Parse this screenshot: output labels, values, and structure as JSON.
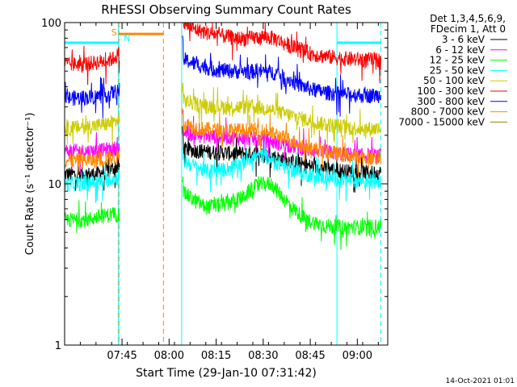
{
  "chart_data": {
    "type": "line",
    "title": "RHESSI Observing Summary Count Rates",
    "xlabel": "Start Time (29-Jan-10 07:31:42)",
    "ylabel": "Count Rate (s⁻¹ detector⁻¹)",
    "y_scale": "log",
    "ylim": [
      1,
      100
    ],
    "xlim_minutes": [
      -5,
      98
    ],
    "x_ticks": [
      {
        "t": 13.3,
        "label": "07:45"
      },
      {
        "t": 28.3,
        "label": "08:00"
      },
      {
        "t": 43.3,
        "label": "08:15"
      },
      {
        "t": 58.3,
        "label": "08:30"
      },
      {
        "t": 73.3,
        "label": "08:45"
      },
      {
        "t": 88.3,
        "label": "09:00"
      }
    ],
    "y_ticks": [
      {
        "v": 1,
        "label": "1"
      },
      {
        "v": 10,
        "label": "10"
      },
      {
        "v": 100,
        "label": "100"
      }
    ],
    "legend_header": [
      "Det 1,3,4,5,6,9,",
      "FDecim 1, Att 0"
    ],
    "legend_position": "top-right, outside plot",
    "data_gaps_minutes": [
      [
        12.5,
        32.5
      ]
    ],
    "series": [
      {
        "name": "3 - 6 keV",
        "color": "#000000",
        "points": [
          [
            -5,
            11.5
          ],
          [
            5,
            11.5
          ],
          [
            10.5,
            12.5
          ],
          [
            12.5,
            13
          ],
          [
            32.5,
            16.5
          ],
          [
            38,
            16
          ],
          [
            48,
            15.5
          ],
          [
            56,
            15.5
          ],
          [
            60,
            15
          ],
          [
            66,
            14
          ],
          [
            72,
            13
          ],
          [
            78,
            12.5
          ],
          [
            85,
            12
          ],
          [
            90,
            11.8
          ],
          [
            98,
            11.7
          ]
        ]
      },
      {
        "name": "6 - 12 keV",
        "color": "#ff00ff",
        "points": [
          [
            -5,
            16
          ],
          [
            5,
            16
          ],
          [
            10.5,
            16.5
          ],
          [
            12.5,
            17
          ],
          [
            32.5,
            21
          ],
          [
            38,
            20
          ],
          [
            48,
            19.5
          ],
          [
            56,
            19
          ],
          [
            60,
            18.5
          ],
          [
            66,
            17.5
          ],
          [
            72,
            16.5
          ],
          [
            78,
            15.8
          ],
          [
            85,
            15.3
          ],
          [
            90,
            15
          ],
          [
            98,
            15
          ]
        ]
      },
      {
        "name": "12 - 25 keV",
        "color": "#00ff00",
        "points": [
          [
            -5,
            6
          ],
          [
            2,
            6
          ],
          [
            5,
            6.2
          ],
          [
            10.5,
            6.5
          ],
          [
            12.5,
            6.5
          ],
          [
            32.5,
            9
          ],
          [
            36,
            8
          ],
          [
            40,
            7.2
          ],
          [
            46,
            7.5
          ],
          [
            52,
            8.3
          ],
          [
            55,
            9.5
          ],
          [
            58,
            10
          ],
          [
            61,
            10
          ],
          [
            64,
            8.5
          ],
          [
            68,
            7
          ],
          [
            72,
            6
          ],
          [
            78,
            5.5
          ],
          [
            85,
            5.4
          ],
          [
            90,
            5.4
          ],
          [
            98,
            5.5
          ]
        ]
      },
      {
        "name": "25 - 50 keV",
        "color": "#00ffff",
        "points": [
          [
            -5,
            10
          ],
          [
            5,
            10.2
          ],
          [
            10.5,
            10.8
          ],
          [
            12.5,
            11
          ],
          [
            32.5,
            14
          ],
          [
            36,
            13
          ],
          [
            40,
            12
          ],
          [
            46,
            12.3
          ],
          [
            50,
            13
          ],
          [
            54,
            14.5
          ],
          [
            58,
            15
          ],
          [
            62,
            14
          ],
          [
            66,
            12.5
          ],
          [
            72,
            11.5
          ],
          [
            78,
            11
          ],
          [
            85,
            10.5
          ],
          [
            90,
            10.5
          ],
          [
            98,
            10.5
          ]
        ]
      },
      {
        "name": "50 - 100 keV",
        "color": "#cccc00",
        "points": [
          [
            -5,
            22
          ],
          [
            5,
            23
          ],
          [
            10.5,
            24
          ],
          [
            12.5,
            25
          ],
          [
            32.5,
            33
          ],
          [
            38,
            31
          ],
          [
            46,
            30
          ],
          [
            52,
            30
          ],
          [
            56,
            30
          ],
          [
            60,
            29
          ],
          [
            66,
            27
          ],
          [
            72,
            25
          ],
          [
            78,
            23.5
          ],
          [
            85,
            22.5
          ],
          [
            90,
            22
          ],
          [
            98,
            22
          ]
        ]
      },
      {
        "name": "100 - 300 keV",
        "color": "#ff0000",
        "points": [
          [
            -5,
            55
          ],
          [
            3,
            56
          ],
          [
            8,
            58
          ],
          [
            10.5,
            60
          ],
          [
            12.5,
            65
          ],
          [
            32.5,
            100
          ],
          [
            36,
            92
          ],
          [
            40,
            87
          ],
          [
            44,
            84
          ],
          [
            50,
            80
          ],
          [
            54,
            80
          ],
          [
            58,
            82
          ],
          [
            62,
            80
          ],
          [
            66,
            73
          ],
          [
            70,
            68
          ],
          [
            74,
            64
          ],
          [
            78,
            62
          ],
          [
            84,
            60
          ],
          [
            90,
            59
          ],
          [
            98,
            59
          ]
        ]
      },
      {
        "name": "300 - 800 keV",
        "color": "#0000ff",
        "points": [
          [
            -5,
            34
          ],
          [
            3,
            34.5
          ],
          [
            8,
            35.5
          ],
          [
            10.5,
            37
          ],
          [
            12.5,
            38
          ],
          [
            32.5,
            60
          ],
          [
            36,
            56
          ],
          [
            40,
            53
          ],
          [
            44,
            51
          ],
          [
            50,
            50
          ],
          [
            54,
            50
          ],
          [
            58,
            50
          ],
          [
            62,
            49
          ],
          [
            66,
            45
          ],
          [
            70,
            41
          ],
          [
            74,
            38.5
          ],
          [
            78,
            37
          ],
          [
            84,
            36
          ],
          [
            90,
            35.5
          ],
          [
            98,
            35.5
          ]
        ]
      },
      {
        "name": "800 - 7000 keV",
        "color": "#ff8800",
        "points": [
          [
            -5,
            14
          ],
          [
            5,
            14
          ],
          [
            10.5,
            14.5
          ],
          [
            12.5,
            15
          ],
          [
            32.5,
            24
          ],
          [
            38,
            22
          ],
          [
            46,
            21.5
          ],
          [
            52,
            21.5
          ],
          [
            56,
            21.5
          ],
          [
            60,
            21
          ],
          [
            66,
            19
          ],
          [
            72,
            17
          ],
          [
            78,
            16
          ],
          [
            85,
            15
          ],
          [
            90,
            14.5
          ],
          [
            98,
            14.5
          ]
        ]
      },
      {
        "name": "7000 - 15000 keV",
        "color": "#888800",
        "points": []
      }
    ],
    "annotations": [
      {
        "text": "S",
        "color": "#ff8800"
      },
      {
        "text": "N",
        "color": "#00ffff"
      }
    ],
    "markers": {
      "saa_bar": {
        "t0": 12.3,
        "t1": 26.5,
        "v": 85,
        "color": "#ff8800"
      },
      "night_bars": [
        {
          "t0": -5,
          "t1": 12.1,
          "v": 75,
          "color": "#00ffff"
        },
        {
          "t0": 81.8,
          "t1": 95.8,
          "v": 75,
          "color": "#00ffff"
        }
      ],
      "solid_lines": [
        {
          "t": -5,
          "color": "#00ffff"
        },
        {
          "t": 12.1,
          "color": "#00ffff"
        },
        {
          "t": 32.3,
          "color": "#00ffff"
        },
        {
          "t": 81.8,
          "color": "#00ffff"
        }
      ],
      "dashed_lines": [
        {
          "t": 12.3,
          "color": "#ff8800"
        },
        {
          "t": 26.5,
          "color": "#ff8800"
        },
        {
          "t": 95.8,
          "color": "#00ffff"
        }
      ]
    },
    "footer_timestamp": "14-Oct-2021 01:01"
  }
}
